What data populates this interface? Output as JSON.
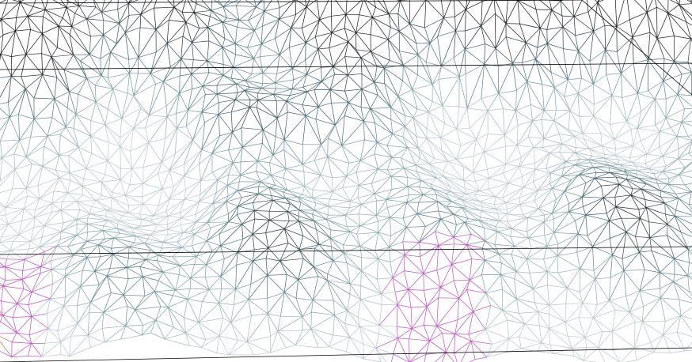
{
  "scene": {
    "kind": "wireframe-terrain-mesh",
    "background_color": "#ffffff",
    "bounding_box_color": "#000000",
    "palette": {
      "peak": "#111111",
      "high": "#3d5f6e",
      "mid": "#7c9ea9",
      "low": "#b9c7cf",
      "magenta": "#c04bc4",
      "orange": "#d76a22"
    }
  }
}
